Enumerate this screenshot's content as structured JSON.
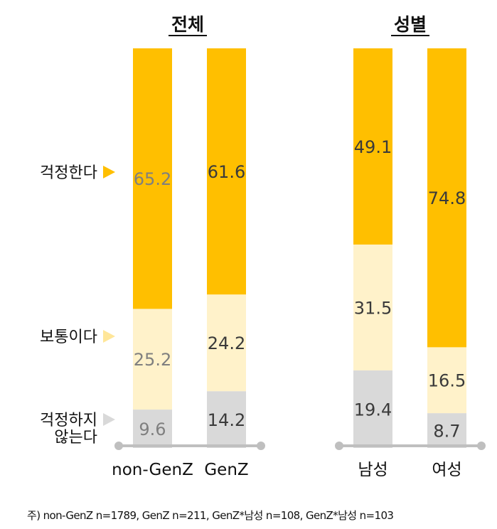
{
  "chart_data": {
    "type": "bar",
    "stacked": true,
    "normalized": true,
    "ylim": [
      0,
      100
    ],
    "groups": [
      {
        "title": "전체",
        "categories": [
          "non-GenZ",
          "GenZ"
        ]
      },
      {
        "title": "성별",
        "categories": [
          "남성",
          "여성"
        ]
      }
    ],
    "categories": [
      "non-GenZ",
      "GenZ",
      "남성",
      "여성"
    ],
    "series": [
      {
        "name": "걱정하지 않는다",
        "color": "#D9D9D9",
        "values": [
          9.6,
          14.2,
          19.4,
          8.7
        ]
      },
      {
        "name": "보통이다",
        "color": "#FFF2CA",
        "values": [
          25.2,
          24.2,
          31.5,
          16.5
        ]
      },
      {
        "name": "걱정한다",
        "color": "#FFBF00",
        "values": [
          65.2,
          61.6,
          49.1,
          74.8
        ]
      }
    ],
    "legend_labels": [
      {
        "text": "걱정한다",
        "arrow_color": "#FFBF00"
      },
      {
        "text": "보통이다",
        "arrow_color": "#FFE699"
      },
      {
        "text": "걱정하지\n않는다",
        "arrow_color": "#D9D9D9"
      }
    ],
    "label_colors": [
      "#7F7F7F",
      "#3A3A3A",
      "#3A3A3A",
      "#3A3A3A"
    ],
    "axis_color": "#BFBFBF"
  },
  "footnote": "주) non-GenZ n=1789, GenZ n=211, GenZ*남성 n=108, GenZ*남성 n=103"
}
